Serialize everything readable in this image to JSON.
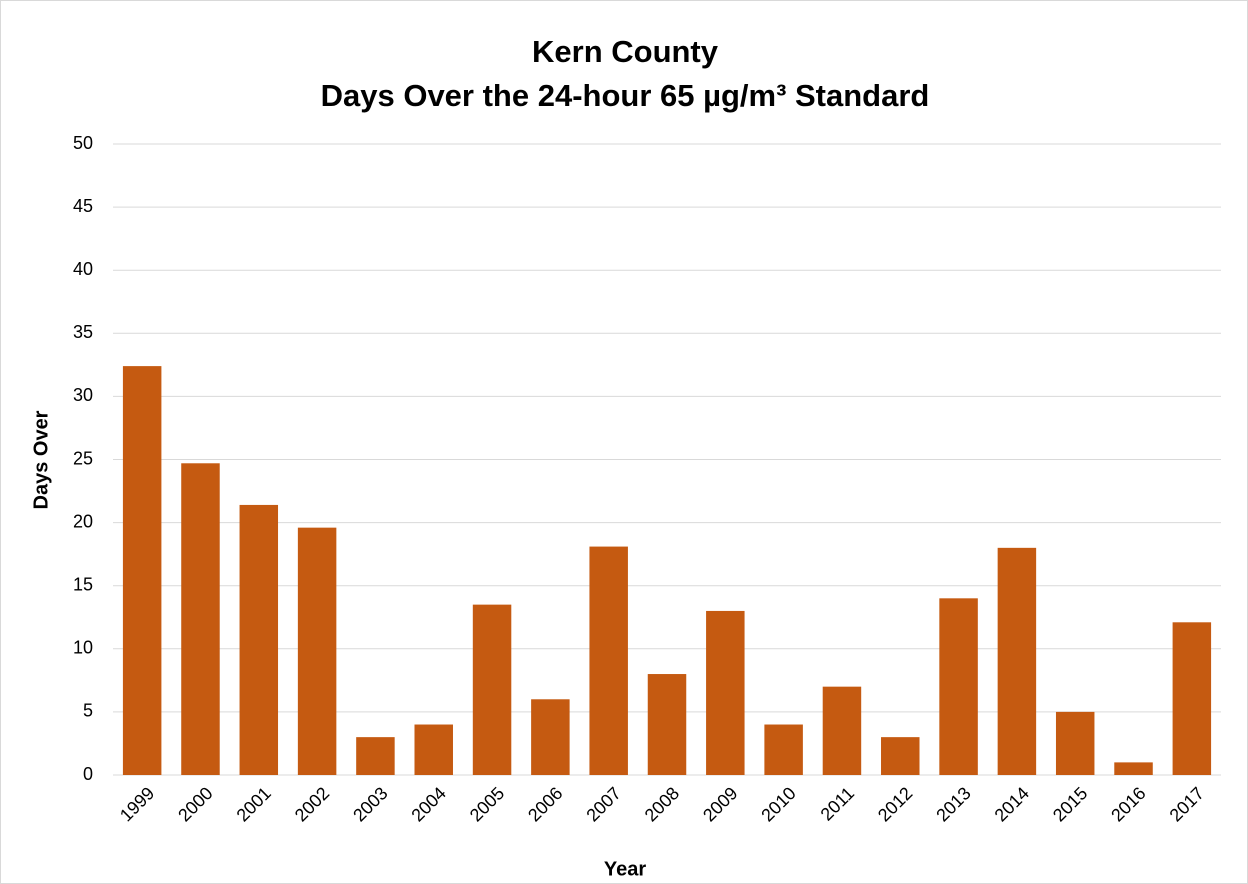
{
  "chart_data": {
    "type": "bar",
    "title": [
      "Kern County",
      "Days Over the 24-hour 65 µg/m³ Standard"
    ],
    "x_label": "Year",
    "y_label": "Days Over",
    "categories": [
      "1999",
      "2000",
      "2001",
      "2002",
      "2003",
      "2004",
      "2005",
      "2006",
      "2007",
      "2008",
      "2009",
      "2010",
      "2011",
      "2012",
      "2013",
      "2014",
      "2015",
      "2016",
      "2017"
    ],
    "values": [
      32.4,
      24.7,
      21.4,
      19.6,
      3,
      4,
      13.5,
      6,
      18.1,
      8,
      13,
      4,
      7,
      3,
      14,
      18,
      5,
      1,
      12.1
    ],
    "color": "#c55a11",
    "ylim": [
      0,
      50
    ],
    "yticks": [
      0,
      5,
      10,
      15,
      20,
      25,
      30,
      35,
      40,
      45,
      50
    ],
    "grid": true
  }
}
